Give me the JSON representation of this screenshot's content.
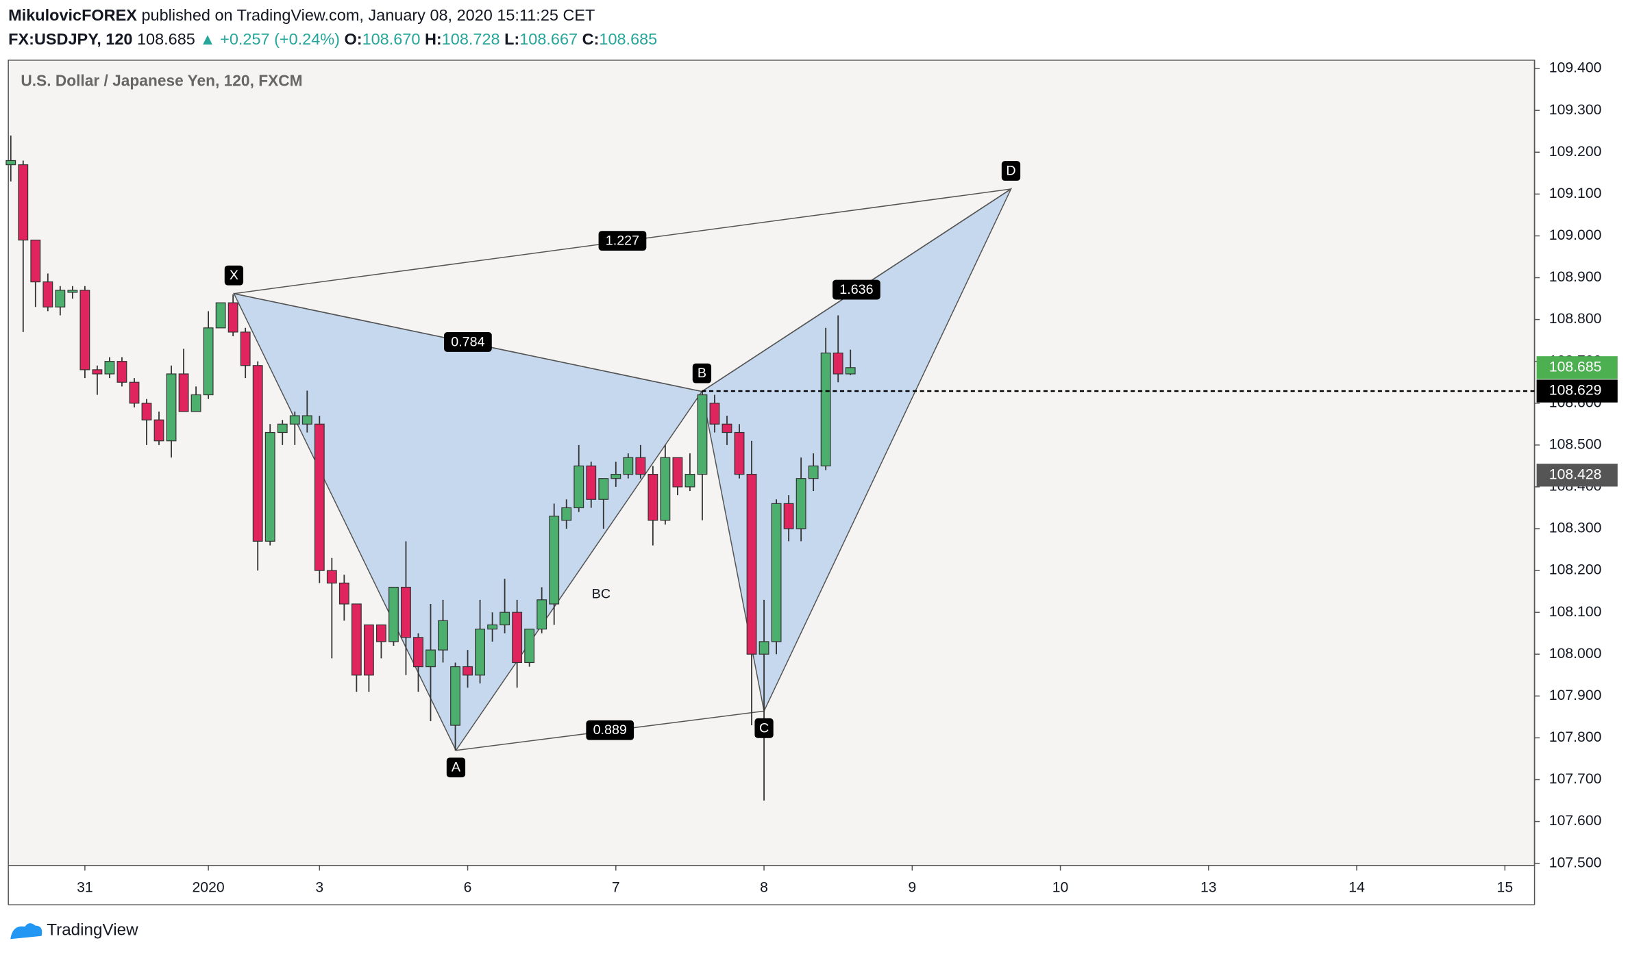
{
  "header": {
    "author": "MikulovicFOREX",
    "published": "published on TradingView.com, January 08, 2020 15:11:25 CET",
    "symbol": "FX:USDJPY, 120",
    "price": "108.685",
    "change": "▲ +0.257 (+0.24%)",
    "o_label": "O:",
    "o": "108.670",
    "h_label": "H:",
    "h": "108.728",
    "l_label": "L:",
    "l": "108.667",
    "c_label": "C:",
    "c": "108.685"
  },
  "footer": {
    "brand": "TradingView"
  },
  "chart_data": {
    "type": "candlestick",
    "title": "U.S. Dollar / Japanese Yen, 120, FXCM",
    "up_color": "#4caf6e",
    "down_color": "#e0245e",
    "open": [
      109.17,
      109.17,
      108.99,
      108.89,
      108.83,
      108.865,
      108.87,
      108.68,
      108.67,
      108.7,
      108.65,
      108.6,
      108.56,
      108.51,
      108.67,
      108.58,
      108.62,
      108.78,
      108.84,
      108.77,
      108.69,
      108.27,
      108.53,
      108.55,
      108.55,
      108.55,
      108.2,
      108.17,
      108.12,
      108.07,
      108.07,
      108.03,
      108.16,
      108.04,
      107.97,
      108.01,
      107.83,
      107.97,
      107.95,
      108.06,
      108.07,
      108.1,
      107.98,
      108.06,
      108.12,
      108.32,
      108.35,
      108.45,
      108.37,
      108.42,
      108.43,
      108.47,
      108.43,
      108.32,
      108.47,
      108.4,
      108.43,
      108.6,
      108.55,
      108.53,
      108.43,
      108.0,
      108.03,
      108.36,
      108.3,
      108.42,
      108.45,
      108.72,
      108.67
    ],
    "high": [
      109.24,
      109.18,
      108.99,
      108.91,
      108.88,
      108.88,
      108.88,
      108.69,
      108.71,
      108.71,
      108.66,
      108.61,
      108.58,
      108.69,
      108.73,
      108.64,
      108.82,
      108.84,
      108.86,
      108.78,
      108.7,
      108.55,
      108.56,
      108.58,
      108.63,
      108.57,
      108.23,
      108.19,
      108.12,
      108.07,
      108.07,
      108.16,
      108.27,
      108.05,
      108.12,
      108.13,
      107.98,
      108.01,
      108.13,
      108.1,
      108.18,
      108.13,
      108.06,
      108.16,
      108.36,
      108.37,
      108.5,
      108.46,
      108.42,
      108.46,
      108.48,
      108.5,
      108.45,
      108.5,
      108.47,
      108.48,
      108.63,
      108.62,
      108.57,
      108.55,
      108.51,
      108.13,
      108.37,
      108.38,
      108.47,
      108.48,
      108.78,
      108.81,
      108.728
    ],
    "low": [
      109.13,
      108.77,
      108.83,
      108.82,
      108.81,
      108.85,
      108.66,
      108.62,
      108.66,
      108.64,
      108.59,
      108.5,
      108.5,
      108.47,
      108.58,
      108.58,
      108.61,
      108.78,
      108.76,
      108.66,
      108.2,
      108.26,
      108.5,
      108.5,
      108.53,
      108.17,
      107.99,
      108.08,
      107.91,
      107.91,
      107.99,
      108.02,
      107.95,
      107.91,
      107.84,
      107.98,
      107.77,
      107.92,
      107.93,
      108.03,
      108.05,
      107.92,
      107.97,
      108.05,
      108.07,
      108.3,
      108.34,
      108.35,
      108.3,
      108.4,
      108.42,
      108.42,
      108.26,
      108.31,
      108.38,
      108.39,
      108.32,
      108.53,
      108.5,
      108.42,
      107.83,
      107.65,
      108.0,
      108.27,
      108.27,
      108.39,
      108.44,
      108.65,
      108.667
    ],
    "close": [
      109.18,
      108.99,
      108.89,
      108.83,
      108.87,
      108.87,
      108.68,
      108.67,
      108.7,
      108.65,
      108.6,
      108.56,
      108.51,
      108.67,
      108.58,
      108.62,
      108.78,
      108.84,
      108.77,
      108.69,
      108.27,
      108.53,
      108.55,
      108.57,
      108.57,
      108.2,
      108.17,
      108.12,
      107.95,
      107.95,
      108.03,
      108.16,
      108.04,
      107.97,
      108.01,
      108.08,
      107.97,
      107.95,
      108.06,
      108.07,
      108.1,
      107.98,
      108.06,
      108.13,
      108.33,
      108.35,
      108.45,
      108.37,
      108.42,
      108.43,
      108.47,
      108.43,
      108.32,
      108.47,
      108.4,
      108.43,
      108.62,
      108.55,
      108.53,
      108.43,
      108.0,
      108.03,
      108.36,
      108.3,
      108.42,
      108.45,
      108.72,
      108.67,
      108.685
    ],
    "xlim": [
      -0.2,
      123.4
    ],
    "xticks": [
      {
        "value": 6,
        "label": "31"
      },
      {
        "value": 16,
        "label": "2020"
      },
      {
        "value": 25,
        "label": "3"
      },
      {
        "value": 37,
        "label": "6"
      },
      {
        "value": 49,
        "label": "7"
      },
      {
        "value": 61,
        "label": "8"
      },
      {
        "value": 73,
        "label": "9"
      },
      {
        "value": 85,
        "label": "10"
      },
      {
        "value": 97,
        "label": "13"
      },
      {
        "value": 109,
        "label": "14"
      },
      {
        "value": 121,
        "label": "15"
      }
    ],
    "ylim": [
      107.495,
      109.42
    ],
    "yticks": [
      {
        "value": 107.5,
        "label": "107.500"
      },
      {
        "value": 107.6,
        "label": "107.600"
      },
      {
        "value": 107.7,
        "label": "107.700"
      },
      {
        "value": 107.8,
        "label": "107.800"
      },
      {
        "value": 107.9,
        "label": "107.900"
      },
      {
        "value": 108.0,
        "label": "108.000"
      },
      {
        "value": 108.1,
        "label": "108.100"
      },
      {
        "value": 108.2,
        "label": "108.200"
      },
      {
        "value": 108.3,
        "label": "108.300"
      },
      {
        "value": 108.4,
        "label": "108.400"
      },
      {
        "value": 108.5,
        "label": "108.500"
      },
      {
        "value": 108.6,
        "label": "108.600"
      },
      {
        "value": 108.7,
        "label": "108.700"
      },
      {
        "value": 108.8,
        "label": "108.800"
      },
      {
        "value": 108.9,
        "label": "108.900"
      },
      {
        "value": 109.0,
        "label": "109.000"
      },
      {
        "value": 109.1,
        "label": "109.100"
      },
      {
        "value": 109.2,
        "label": "109.200"
      },
      {
        "value": 109.3,
        "label": "109.300"
      },
      {
        "value": 109.4,
        "label": "109.400"
      }
    ],
    "last_price": 108.685,
    "hline": 108.629,
    "marker_price": 108.428,
    "pattern": {
      "points": [
        {
          "label": "X",
          "x": 18.07,
          "y": 108.862
        },
        {
          "label": "A",
          "x": 36.05,
          "y": 107.77
        },
        {
          "label": "B",
          "x": 55.97,
          "y": 108.628
        },
        {
          "label": "C",
          "x": 61.0,
          "y": 107.864
        },
        {
          "label": "D",
          "x": 81.0,
          "y": 109.112
        }
      ],
      "ratios": [
        "1.227",
        "0.784",
        "0.889",
        "1.636"
      ],
      "leg_label": "BC"
    }
  }
}
